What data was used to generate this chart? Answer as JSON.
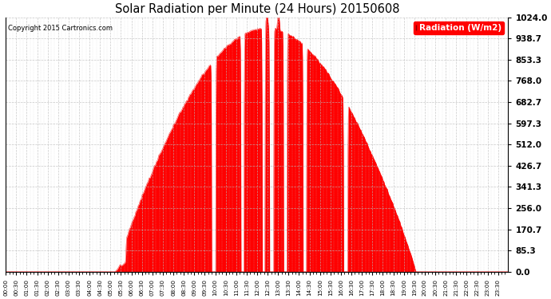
{
  "title": "Solar Radiation per Minute (24 Hours) 20150608",
  "copyright_text": "Copyright 2015 Cartronics.com",
  "legend_label": "Radiation (W/m2)",
  "fill_color": "#ff0000",
  "line_color": "#ff0000",
  "background_color": "#ffffff",
  "grid_color_x": "#bbbbbb",
  "grid_color_y": "#aaaaaa",
  "dashed_line_color": "#ff0000",
  "ylim": [
    0.0,
    1024.0
  ],
  "yticks": [
    0.0,
    85.3,
    170.7,
    256.0,
    341.3,
    426.7,
    512.0,
    597.3,
    682.7,
    768.0,
    853.3,
    938.7,
    1024.0
  ],
  "total_minutes": 1440,
  "figsize": [
    6.9,
    3.75
  ],
  "dpi": 100
}
